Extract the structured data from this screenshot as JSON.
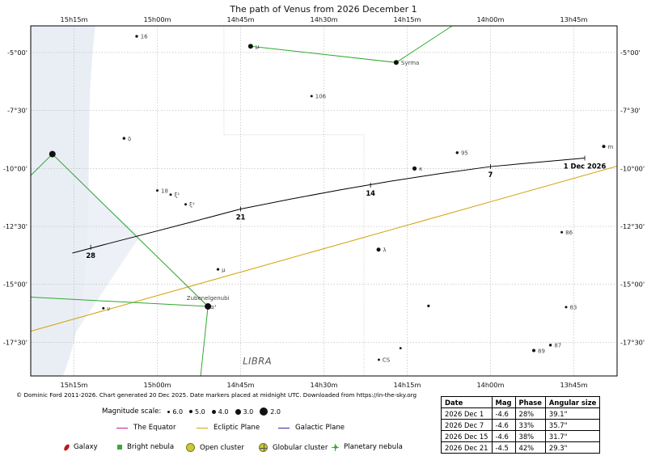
{
  "chart_data": {
    "type": "scatter",
    "title": "The path of Venus from 2026 December 1",
    "ra_ticks": [
      "15h15m",
      "15h00m",
      "14h45m",
      "14h30m",
      "14h15m",
      "14h00m",
      "13h45m"
    ],
    "ra_tick_values_h": [
      15.25,
      15.0,
      14.75,
      14.5,
      14.25,
      14.0,
      13.75
    ],
    "ra_range_h": [
      15.38,
      13.62
    ],
    "dec_ticks": [
      "-5°00'",
      "-7°30'",
      "-10°00'",
      "-12°30'",
      "-15°00'",
      "-17°30'"
    ],
    "dec_tick_values": [
      -5.0,
      -7.5,
      -10.0,
      -12.5,
      -15.0,
      -17.5
    ],
    "dec_range": [
      -3.85,
      -18.95
    ],
    "constellation_label": "LIBRA",
    "venus_path": {
      "points": [
        {
          "ra": 13.717,
          "dec": -9.55
        },
        {
          "ra": 13.85,
          "dec": -9.72
        },
        {
          "ra": 14.0,
          "dec": -9.92
        },
        {
          "ra": 14.15,
          "dec": -10.22
        },
        {
          "ra": 14.3,
          "dec": -10.55
        },
        {
          "ra": 14.45,
          "dec": -10.92
        },
        {
          "ra": 14.6,
          "dec": -11.32
        },
        {
          "ra": 14.75,
          "dec": -11.75
        },
        {
          "ra": 14.9,
          "dec": -12.32
        },
        {
          "ra": 15.05,
          "dec": -12.88
        },
        {
          "ra": 15.15,
          "dec": -13.25
        },
        {
          "ra": 15.255,
          "dec": -13.65
        }
      ],
      "markers": [
        {
          "label": "1 Dec 2026",
          "ra": 13.717,
          "dec": -9.55
        },
        {
          "label": "7",
          "ra": 14.0,
          "dec": -9.92
        },
        {
          "label": "14",
          "ra": 14.36,
          "dec": -10.72
        },
        {
          "label": "21",
          "ra": 14.75,
          "dec": -11.75
        },
        {
          "label": "28",
          "ra": 15.2,
          "dec": -13.4
        }
      ]
    },
    "ecliptic": {
      "name": "Ecliptic Plane",
      "points": [
        {
          "ra": 15.38,
          "dec": -17.02
        },
        {
          "ra": 13.62,
          "dec": -9.9
        }
      ]
    },
    "constellation_lines": [
      [
        {
          "ra": 14.72,
          "dec": -4.73
        },
        {
          "ra": 14.283,
          "dec": -5.43
        },
        {
          "ra": 14.115,
          "dec": -3.85
        }
      ],
      [
        {
          "ra": 15.38,
          "dec": -10.3
        },
        {
          "ra": 15.315,
          "dec": -9.38
        },
        {
          "ra": 14.848,
          "dec": -15.95
        },
        {
          "ra": 14.87,
          "dec": -18.95
        }
      ],
      [
        {
          "ra": 15.38,
          "dec": -15.55
        },
        {
          "ra": 14.848,
          "dec": -15.95
        }
      ]
    ],
    "stars": [
      {
        "ra": 15.315,
        "dec": -9.38,
        "r": 4.0,
        "label": ""
      },
      {
        "ra": 14.848,
        "dec": -15.95,
        "r": 4.0,
        "label": "Zubenelgenubi"
      },
      {
        "ra": 14.848,
        "dec": -15.95,
        "r": 0,
        "label": "α¹"
      },
      {
        "ra": 14.72,
        "dec": -4.73,
        "r": 3.0,
        "label": "μ"
      },
      {
        "ra": 14.283,
        "dec": -5.43,
        "r": 3.0,
        "label": "Syrma"
      },
      {
        "ra": 15.062,
        "dec": -4.3,
        "r": 1.7,
        "label": "16"
      },
      {
        "ra": 14.537,
        "dec": -6.88,
        "r": 1.5,
        "label": "106"
      },
      {
        "ra": 15.1,
        "dec": -8.7,
        "r": 1.7,
        "label": "δ"
      },
      {
        "ra": 13.66,
        "dec": -9.05,
        "r": 2.0,
        "label": "m"
      },
      {
        "ra": 14.1,
        "dec": -9.32,
        "r": 1.7,
        "label": "95"
      },
      {
        "ra": 14.228,
        "dec": -10.0,
        "r": 2.6,
        "label": "κ"
      },
      {
        "ra": 15.0,
        "dec": -10.95,
        "r": 1.5,
        "label": "18"
      },
      {
        "ra": 14.96,
        "dec": -11.13,
        "r": 1.5,
        "label": "ξ¹"
      },
      {
        "ra": 14.915,
        "dec": -11.55,
        "r": 1.5,
        "label": "ξ²"
      },
      {
        "ra": 13.786,
        "dec": -12.75,
        "r": 1.5,
        "label": "86"
      },
      {
        "ra": 14.336,
        "dec": -13.5,
        "r": 2.5,
        "label": "λ"
      },
      {
        "ra": 14.818,
        "dec": -14.35,
        "r": 1.6,
        "label": "μ"
      },
      {
        "ra": 15.162,
        "dec": -16.03,
        "r": 1.5,
        "label": "ν"
      },
      {
        "ra": 14.186,
        "dec": -15.93,
        "r": 1.6,
        "label": ""
      },
      {
        "ra": 13.773,
        "dec": -15.98,
        "r": 1.5,
        "label": "83"
      },
      {
        "ra": 13.82,
        "dec": -17.62,
        "r": 1.7,
        "label": "87"
      },
      {
        "ra": 13.87,
        "dec": -17.85,
        "r": 2.0,
        "label": "89"
      },
      {
        "ra": 14.27,
        "dec": -17.75,
        "r": 1.4,
        "label": ""
      },
      {
        "ra": 14.335,
        "dec": -18.25,
        "r": 1.4,
        "label": "CS"
      }
    ]
  },
  "copyright": "© Dominic Ford 2011-2026. Chart generated 20 Dec 2025. Date markers placed at midnight UTC. Downloaded from https://in-the-sky.org",
  "magnitude_scale": {
    "title": "Magnitude scale:",
    "items": [
      {
        "label": "6.0",
        "size": 3
      },
      {
        "label": "5.0",
        "size": 4
      },
      {
        "label": "4.0",
        "size": 5
      },
      {
        "label": "3.0",
        "size": 7
      },
      {
        "label": "2.0",
        "size": 10
      }
    ]
  },
  "line_legend": [
    {
      "label": "The Equator",
      "color": "#c71c8e"
    },
    {
      "label": "Ecliptic Plane",
      "color": "#d4a20a"
    },
    {
      "label": "Galactic Plane",
      "color": "#2c2ca0"
    }
  ],
  "object_legend": {
    "galaxy": "Galaxy",
    "bright_nebula": "Bright nebula",
    "open_cluster": "Open cluster",
    "globular_cluster": "Globular cluster",
    "planetary_nebula": "Planetary nebula"
  },
  "table": {
    "headers": [
      "Date",
      "Mag",
      "Phase",
      "Angular size"
    ],
    "rows": [
      [
        "2026 Dec 1",
        "-4.6",
        "28%",
        "39.1\""
      ],
      [
        "2026 Dec 7",
        "-4.6",
        "33%",
        "35.7\""
      ],
      [
        "2026 Dec 15",
        "-4.6",
        "38%",
        "31.7\""
      ],
      [
        "2026 Dec 21",
        "-4.5",
        "42%",
        "29.3\""
      ]
    ]
  },
  "colors": {
    "venus_path": "#000000",
    "constellation_line": "#2ea82e",
    "ecliptic": "#d4a20a",
    "grid": "#b4b4b4",
    "milky_way": "#e9eef5"
  }
}
